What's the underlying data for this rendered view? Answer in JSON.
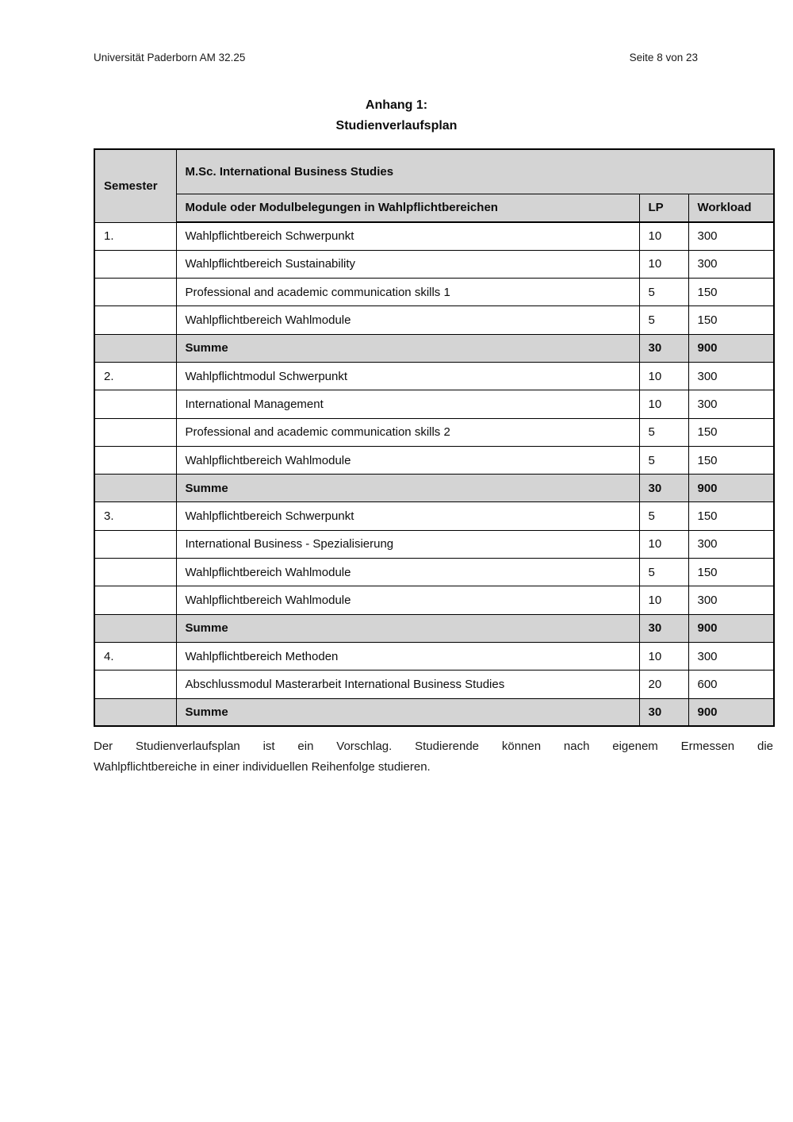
{
  "page": {
    "header_left": "Universität Paderborn AM 32.25",
    "header_right": "Seite 8 von 23",
    "title_line1": "Anhang 1:",
    "title_line2": "Studienverlaufsplan",
    "footer_note_line1": "Der Studienverlaufsplan ist ein Vorschlag. Studierende können nach eigenem Ermessen die",
    "footer_note_line2": "Wahlpflichtbereiche in einer individuellen Reihenfolge studieren."
  },
  "colors": {
    "header_fill": "#d4d4d4",
    "border": "#000000",
    "text": "#111111"
  },
  "table": {
    "corner_header": "Semester",
    "program_header": "M.Sc. International Business Studies",
    "col_headers": [
      "Module oder Modulbelegungen in Wahlpflichtbereichen",
      "LP",
      "Workload"
    ],
    "rows": [
      {
        "semester": "1.",
        "semester_bold": true,
        "module": "Wahlpflichtbereich Schwerpunkt",
        "lp": "10",
        "workload": "300",
        "summe": false
      },
      {
        "semester": "",
        "semester_bold": false,
        "module": "Wahlpflichtbereich Sustainability",
        "lp": "10",
        "workload": "300",
        "summe": false
      },
      {
        "semester": "",
        "semester_bold": false,
        "module": "Professional and academic communication skills 1",
        "lp": "5",
        "workload": "150",
        "summe": false
      },
      {
        "semester": "",
        "semester_bold": false,
        "module": "Wahlpflichtbereich Wahlmodule",
        "lp": "5",
        "workload": "150",
        "summe": false
      },
      {
        "semester": "",
        "semester_bold": false,
        "module": "Summe",
        "lp": "30",
        "workload": "900",
        "summe": true
      },
      {
        "semester": "2.",
        "semester_bold": true,
        "module": "Wahlpflichtmodul Schwerpunkt",
        "lp": "10",
        "workload": "300",
        "summe": false
      },
      {
        "semester": "",
        "semester_bold": false,
        "module": "International Management",
        "lp": "10",
        "workload": "300",
        "summe": false
      },
      {
        "semester": "",
        "semester_bold": false,
        "module": "Professional and academic communication skills 2",
        "lp": "5",
        "workload": "150",
        "summe": false
      },
      {
        "semester": "",
        "semester_bold": false,
        "module": "Wahlpflichtbereich Wahlmodule",
        "lp": "5",
        "workload": "150",
        "summe": false
      },
      {
        "semester": "",
        "semester_bold": false,
        "module": "Summe",
        "lp": "30",
        "workload": "900",
        "summe": true
      },
      {
        "semester": "3.",
        "semester_bold": false,
        "module": "Wahlpflichtbereich Schwerpunkt",
        "lp": "5",
        "workload": "150",
        "summe": false
      },
      {
        "semester": "",
        "semester_bold": false,
        "module": "International Business - Spezialisierung",
        "lp": "10",
        "workload": "300",
        "summe": false
      },
      {
        "semester": "",
        "semester_bold": false,
        "module": "Wahlpflichtbereich Wahlmodule",
        "lp": "5",
        "workload": "150",
        "summe": false
      },
      {
        "semester": "",
        "semester_bold": false,
        "module": "Wahlpflichtbereich Wahlmodule",
        "lp": "10",
        "workload": "300",
        "summe": false
      },
      {
        "semester": "",
        "semester_bold": false,
        "module": "Summe",
        "lp": "30",
        "workload": "900",
        "summe": true
      },
      {
        "semester": "4.",
        "semester_bold": true,
        "module": "Wahlpflichtbereich Methoden",
        "lp": "10",
        "workload": "300",
        "summe": false
      },
      {
        "semester": "",
        "semester_bold": false,
        "module": "Abschlussmodul Masterarbeit International Business Studies",
        "lp": "20",
        "workload": "600",
        "summe": false
      },
      {
        "semester": "",
        "semester_bold": false,
        "module": "Summe",
        "lp": "30",
        "workload": "900",
        "summe": true
      }
    ]
  }
}
